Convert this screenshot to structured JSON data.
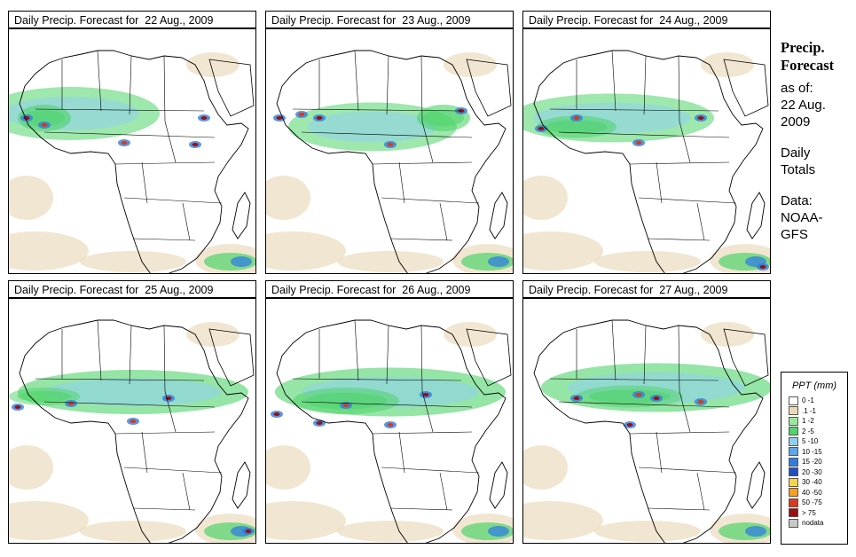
{
  "title_prefix": "Daily Precip. Forecast for",
  "panels": [
    {
      "date": "22 Aug., 2009"
    },
    {
      "date": "23 Aug., 2009"
    },
    {
      "date": "24 Aug., 2009"
    },
    {
      "date": "25 Aug., 2009"
    },
    {
      "date": "26 Aug., 2009"
    },
    {
      "date": "27 Aug., 2009"
    }
  ],
  "side": {
    "title_line1": "Precip.",
    "title_line2": "Forecast",
    "asof_label": "as of:",
    "asof_date_line1": "22 Aug.",
    "asof_date_line2": "2009",
    "totals_line1": "Daily",
    "totals_line2": "Totals",
    "data_label": "Data:",
    "data_src_line1": "NOAA-",
    "data_src_line2": "GFS"
  },
  "legend": {
    "title": "PPT (mm)",
    "items": [
      {
        "label": "0 -1",
        "color": "#ffffff"
      },
      {
        "label": ".1 -1",
        "color": "#ead9b8"
      },
      {
        "label": "1 -2",
        "color": "#9be89b"
      },
      {
        "label": "2 -5",
        "color": "#4fd36a"
      },
      {
        "label": "5 -10",
        "color": "#8fd0f0"
      },
      {
        "label": "10 -15",
        "color": "#5aa7ec"
      },
      {
        "label": "15 -20",
        "color": "#2f7de0"
      },
      {
        "label": "20 -30",
        "color": "#1f4fc8"
      },
      {
        "label": "30 -40",
        "color": "#f5d64a"
      },
      {
        "label": "40 -50",
        "color": "#f5a020"
      },
      {
        "label": "50 -75",
        "color": "#d83a1a"
      },
      {
        "label": "> 75",
        "color": "#9a1010"
      },
      {
        "label": "nodata",
        "color": "#c8c8c8"
      }
    ]
  }
}
